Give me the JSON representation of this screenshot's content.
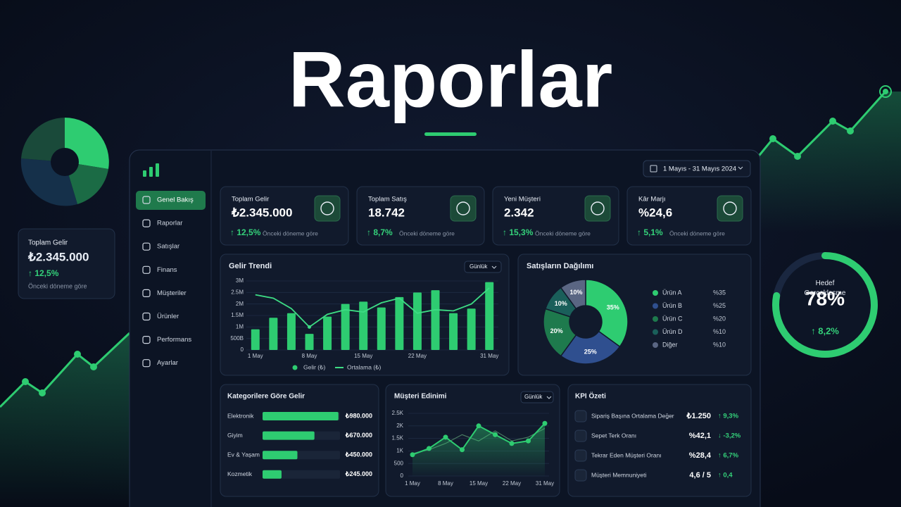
{
  "title": "Raporlar",
  "floating_card": {
    "label": "Toplam Gelir",
    "value": "₺2.345.000",
    "change": "↑ 12,5%",
    "note": "Önceki döneme göre"
  },
  "gauge": {
    "title": "Hedef Gerçekleşme",
    "value": 78,
    "value_label": "78%",
    "change": "↑ 8,2%",
    "color": "#2ecc71"
  },
  "sidebar": {
    "items": [
      "Genel Bakış",
      "Raporlar",
      "Satışlar",
      "Finans",
      "Müşteriler",
      "Ürünler",
      "Performans",
      "Ayarlar"
    ],
    "active": 0
  },
  "date_range": "1 Mayıs - 31 Mayıs 2024",
  "kpi_cards": [
    {
      "label": "Toplam Gelir",
      "value": "₺2.345.000",
      "change": "↑ 12,5%",
      "note": "Önceki döneme göre"
    },
    {
      "label": "Toplam Satış",
      "value": "18.742",
      "change": "↑ 8,7%",
      "note": "Önceki döneme göre"
    },
    {
      "label": "Yeni Müşteri",
      "value": "2.342",
      "change": "↑ 15,3%",
      "note": "Önceki döneme göre"
    },
    {
      "label": "Kâr Marjı",
      "value": "%24,6",
      "change": "↑ 5,1%",
      "note": "Önceki döneme göre"
    }
  ],
  "revenue_trend": {
    "type": "bar",
    "title": "Gelir Trendi",
    "period": "Günlük",
    "categories": [
      "1 May",
      null,
      null,
      "8 May",
      null,
      null,
      "15 May",
      null,
      null,
      "22 May",
      null,
      null,
      null,
      "31 May"
    ],
    "ylim": [
      0,
      3000000
    ],
    "yticks": [
      0,
      {
        "value": 500000,
        "label": "500B"
      },
      {
        "value": 1000000,
        "label": "1M"
      },
      {
        "value": 1500000,
        "label": "1.5M"
      },
      {
        "value": 2000000,
        "label": "2M"
      },
      {
        "value": 2500000,
        "label": "2.5M"
      },
      {
        "value": 3000000,
        "label": "3M"
      }
    ],
    "series": [
      {
        "name": "Gelir (₺)",
        "type": "bar",
        "color": "#2ecc71",
        "values": [
          900000,
          1400000,
          1600000,
          700000,
          1450000,
          2000000,
          2100000,
          1850000,
          2300000,
          2500000,
          2600000,
          1600000,
          1800000,
          2950000
        ]
      },
      {
        "name": "Ortalama (₺)",
        "type": "line",
        "color": "#3ddc84",
        "values": [
          2400000,
          2250000,
          1800000,
          1000000,
          1550000,
          1750000,
          1650000,
          2050000,
          2250000,
          1600000,
          1750000,
          1700000,
          2000000,
          2700000
        ]
      }
    ]
  },
  "sales_distribution": {
    "type": "pie",
    "title": "Satışların Dağılımı",
    "categories": [
      "Ürün A",
      "Ürün B",
      "Ürün C",
      "Ürün D",
      "Diğer"
    ],
    "values": [
      35,
      25,
      20,
      10,
      10
    ],
    "value_labels": [
      "35%",
      "25%",
      "20%",
      "10%",
      "10%"
    ],
    "legend_value_labels": [
      "%35",
      "%25",
      "%20",
      "%10",
      "%10"
    ],
    "colors": [
      "#2ecc71",
      "#2f4f8f",
      "#1e7a4d",
      "#1a5f5a",
      "#5a6683"
    ]
  },
  "category_revenue": {
    "type": "bar",
    "title": "Kategorilere Göre Gelir",
    "categories": [
      "Elektronik",
      "Giyim",
      "Ev & Yaşam",
      "Kozmetik"
    ],
    "values": [
      980000,
      670000,
      450000,
      245000
    ],
    "value_labels": [
      "₺980.000",
      "₺670.000",
      "₺450.000",
      "₺245.000"
    ],
    "xlim": [
      0,
      1000000
    ],
    "color": "#2ecc71"
  },
  "customer_acquisition": {
    "type": "area",
    "title": "Müşteri Edinimi",
    "period": "Günlük",
    "categories": [
      "1 May",
      null,
      "8 May",
      null,
      "15 May",
      null,
      "22 May",
      null,
      "31 May"
    ],
    "ylim": [
      0,
      2500
    ],
    "yticks": [
      0,
      500,
      {
        "value": 1000,
        "label": "1K"
      },
      {
        "value": 1500,
        "label": "1.5K"
      },
      {
        "value": 2000,
        "label": "2K"
      },
      {
        "value": 2500,
        "label": "2.5K"
      }
    ],
    "series": [
      {
        "color": "#2ecc71",
        "values": [
          850,
          1100,
          1550,
          1050,
          2000,
          1650,
          1300,
          1400,
          2100
        ]
      },
      {
        "color": "#4a7a62",
        "values": [
          900,
          1050,
          1300,
          1650,
          1400,
          1800,
          1400,
          1550,
          1900
        ]
      }
    ]
  },
  "kpi_summary": {
    "title": "KPI Özeti",
    "rows": [
      {
        "label": "Sipariş Başına Ortalama Değer",
        "value": "₺1.250",
        "change": "↑ 9,3%"
      },
      {
        "label": "Sepet Terk Oranı",
        "value": "%42,1",
        "change": "↓ -3,2%"
      },
      {
        "label": "Tekrar Eden Müşteri Oranı",
        "value": "%28,4",
        "change": "↑ 6,7%"
      },
      {
        "label": "Müşteri Memnuniyeti",
        "value": "4,6 / 5",
        "change": "↑ 0,4"
      }
    ]
  }
}
